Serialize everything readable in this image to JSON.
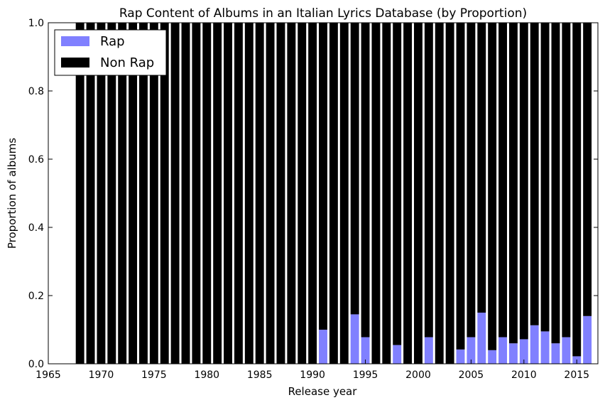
{
  "chart_data": {
    "type": "bar",
    "stacked": true,
    "title": "Rap Content of Albums in an Italian Lyrics Database (by Proportion)",
    "xlabel": "Release year",
    "ylabel": "Proportion of albums",
    "xlim": [
      1965,
      2017
    ],
    "ylim": [
      0,
      1.0
    ],
    "x_ticks": [
      "1965",
      "1970",
      "1975",
      "1980",
      "1985",
      "1990",
      "1995",
      "2000",
      "2005",
      "2010",
      "2015"
    ],
    "y_ticks": [
      "0.0",
      "0.2",
      "0.4",
      "0.6",
      "0.8",
      "1.0"
    ],
    "grid": false,
    "legend_position": "top-left",
    "x": [
      1968,
      1969,
      1970,
      1971,
      1972,
      1973,
      1974,
      1975,
      1976,
      1977,
      1978,
      1979,
      1980,
      1981,
      1982,
      1983,
      1984,
      1985,
      1986,
      1987,
      1988,
      1989,
      1990,
      1991,
      1992,
      1993,
      1994,
      1995,
      1996,
      1997,
      1998,
      1999,
      2000,
      2001,
      2002,
      2003,
      2004,
      2005,
      2006,
      2007,
      2008,
      2009,
      2010,
      2011,
      2012,
      2013,
      2014,
      2015,
      2016
    ],
    "series": [
      {
        "name": "Rap",
        "color": "#8080ff",
        "values": [
          0,
          0,
          0,
          0,
          0,
          0,
          0,
          0,
          0,
          0,
          0,
          0,
          0,
          0,
          0,
          0,
          0,
          0,
          0,
          0,
          0,
          0,
          0,
          0.1,
          0,
          0,
          0.145,
          0.078,
          0,
          0,
          0.055,
          0,
          0,
          0.078,
          0,
          0,
          0.042,
          0.078,
          0.15,
          0.04,
          0.078,
          0.06,
          0.072,
          0.113,
          0.095,
          0.06,
          0.078,
          0.022,
          0.14
        ]
      },
      {
        "name": "Non Rap",
        "color": "#000000",
        "values": [
          1,
          1,
          1,
          1,
          1,
          1,
          1,
          1,
          1,
          1,
          1,
          1,
          1,
          1,
          1,
          1,
          1,
          1,
          1,
          1,
          1,
          1,
          1,
          0.9,
          1,
          1,
          0.855,
          0.922,
          1,
          1,
          0.945,
          1,
          1,
          0.922,
          1,
          1,
          0.958,
          0.922,
          0.85,
          0.96,
          0.922,
          0.94,
          0.928,
          0.887,
          0.905,
          0.94,
          0.922,
          0.978,
          0.86
        ]
      }
    ]
  }
}
